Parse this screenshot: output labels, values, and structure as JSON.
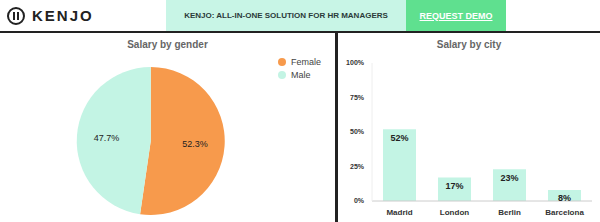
{
  "header": {
    "logo": "KENJO",
    "banner": "KENJO: ALL-IN-ONE SOLUTION FOR HR MANAGERS",
    "button": "REQUEST DEMO"
  },
  "chart_data": [
    {
      "type": "pie",
      "title": "Salary by gender",
      "categories": [
        "Female",
        "Male"
      ],
      "values": [
        52.3,
        47.7
      ],
      "value_labels": [
        "52.3%",
        "47.7%"
      ],
      "colors": [
        "#f79a4c",
        "#c3f4e4"
      ],
      "legend": "top-right",
      "data_labels": true
    },
    {
      "type": "bar",
      "title": "Salary by city",
      "categories": [
        "Madrid",
        "London",
        "Berlin",
        "Barcelona"
      ],
      "values": [
        52,
        17,
        23,
        8
      ],
      "value_labels": [
        "52%",
        "17%",
        "23%",
        "8%"
      ],
      "color": "#c3f4e4",
      "ylim": [
        0,
        100
      ],
      "yticks": [
        {
          "value": 0,
          "label": "0%"
        },
        {
          "value": 25,
          "label": "25%"
        },
        {
          "value": 50,
          "label": "50%"
        },
        {
          "value": 75,
          "label": "75%"
        },
        {
          "value": 100,
          "label": "100%"
        }
      ],
      "grid": false,
      "data_labels": true
    }
  ]
}
